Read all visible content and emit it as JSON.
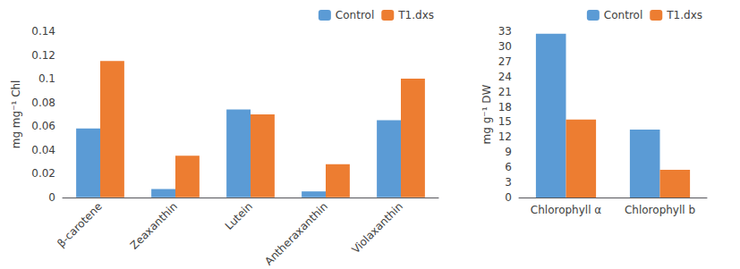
{
  "chart_data": [
    {
      "type": "bar",
      "categories": [
        "β-carotene",
        "Zeaxanthin",
        "Lutein",
        "Antheraxanthin",
        "Violaxanthin"
      ],
      "series": [
        {
          "name": "Control",
          "color": "#5B9BD5",
          "values": [
            0.058,
            0.007,
            0.074,
            0.005,
            0.065
          ]
        },
        {
          "name": "T1.dxs",
          "color": "#ED7D31",
          "values": [
            0.115,
            0.035,
            0.07,
            0.028,
            0.1
          ]
        }
      ],
      "ylabel": "mg mg⁻¹ Chl",
      "ylim": [
        0,
        0.14
      ],
      "yticks": [
        0,
        0.02,
        0.04,
        0.06,
        0.08,
        0.1,
        0.12,
        0.14
      ],
      "grid": false,
      "legend": "upper right"
    },
    {
      "type": "bar",
      "categories": [
        "Chlorophyll α",
        "Chlorophyll b"
      ],
      "series": [
        {
          "name": "Control",
          "color": "#5B9BD5",
          "values": [
            32.5,
            13.5
          ]
        },
        {
          "name": "T1.dxs",
          "color": "#ED7D31",
          "values": [
            15.5,
            5.5
          ]
        }
      ],
      "ylabel": "mg g⁻¹ DW",
      "ylim": [
        0,
        33
      ],
      "yticks": [
        0,
        3,
        6,
        9,
        12,
        15,
        18,
        21,
        24,
        27,
        30,
        33
      ],
      "grid": false,
      "legend": "upper right"
    }
  ]
}
